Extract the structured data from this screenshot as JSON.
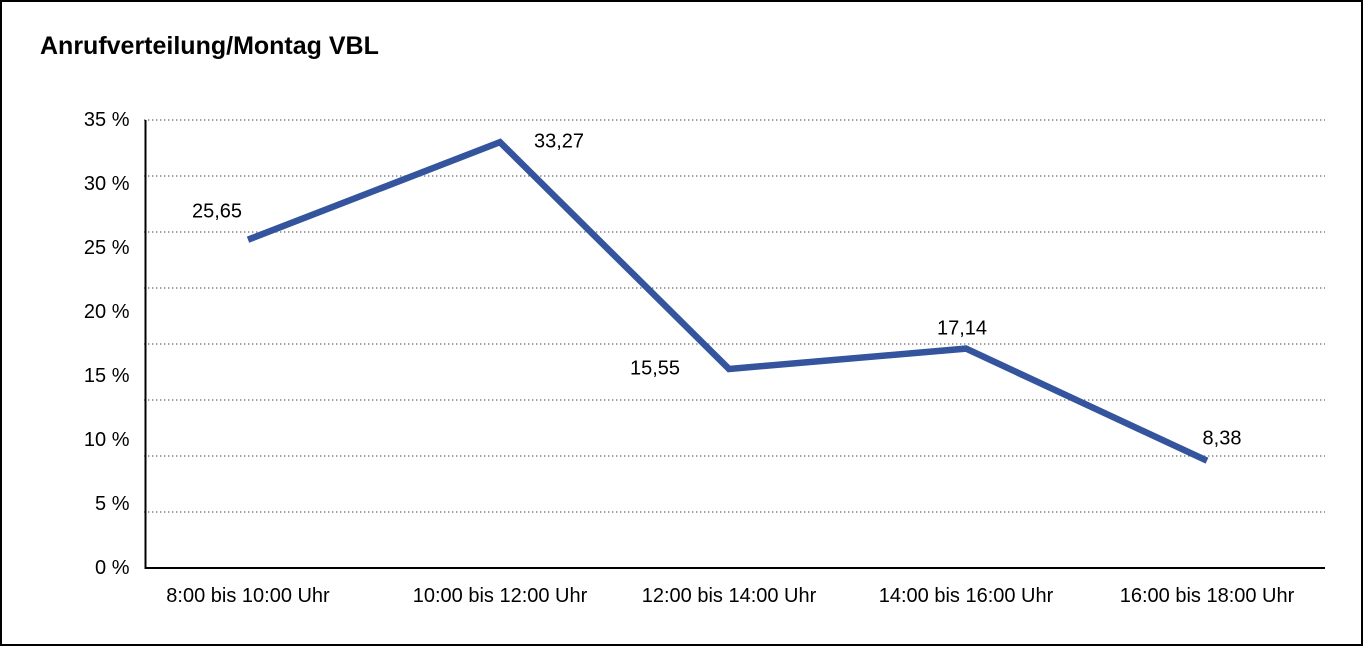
{
  "chart_data": {
    "type": "line",
    "title": "Anrufverteilung/Montag VBL",
    "categories": [
      "8:00 bis 10:00 Uhr",
      "10:00 bis 12:00 Uhr",
      "12:00 bis 14:00 Uhr",
      "14:00 bis 16:00 Uhr",
      "16:00 bis 18:00 Uhr"
    ],
    "values": [
      25.65,
      33.27,
      15.55,
      17.14,
      8.38
    ],
    "point_labels": [
      "25,65",
      "33,27",
      "15,55",
      "17,14",
      "8,38"
    ],
    "y_tick_labels": [
      "35 %",
      "30 %",
      "25 %",
      "20 %",
      "15 %",
      "10 %",
      "5 %",
      "0 %"
    ],
    "y_tick_values": [
      35,
      30,
      25,
      20,
      15,
      10,
      5,
      0
    ],
    "ylim": [
      0,
      35
    ],
    "xlabel": "",
    "ylabel": "",
    "grid": "horizontal-dotted",
    "gridline_count": 9,
    "legend_position": "none",
    "colors": {
      "line": "#34549E",
      "grid": "#666666",
      "axis": "#000000",
      "text": "#000000",
      "background": "#FFFFFF"
    }
  }
}
